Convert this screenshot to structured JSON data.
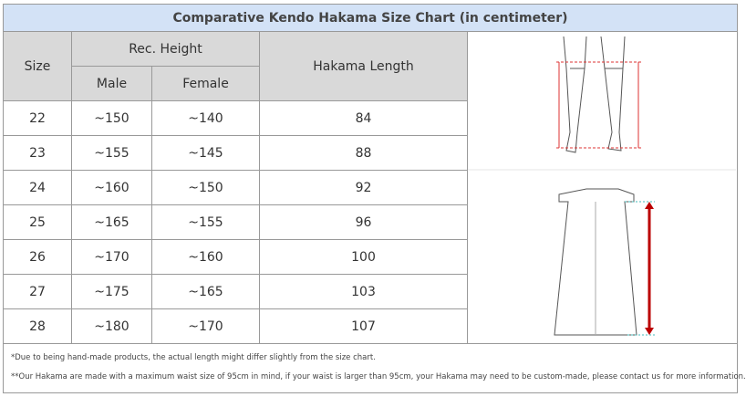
{
  "title": "Comparative Kendo Hakama Size Chart (in centimeter)",
  "header": {
    "size": "Size",
    "rec_height": "Rec. Height",
    "male": "Male",
    "female": "Female",
    "length": "Hakama Length"
  },
  "table": {
    "rows": [
      [
        "22",
        "~150",
        "~140",
        "84"
      ],
      [
        "23",
        "~155",
        "~145",
        "88"
      ],
      [
        "24",
        "~160",
        "~150",
        "92"
      ],
      [
        "25",
        "~165",
        "~155",
        "96"
      ],
      [
        "26",
        "~170",
        "~160",
        "100"
      ],
      [
        "27",
        "~175",
        "~165",
        "103"
      ],
      [
        "28",
        "~180",
        "~170",
        "107"
      ]
    ]
  },
  "notes": [
    "*Due to being hand-made products, the actual length might differ slightly from the size chart.",
    "**Our Hakama are made with a maximum waist size of 95cm in mind, if your waist is larger than 95cm, your Hakama may need to be custom-made, please contact us for more information."
  ]
}
